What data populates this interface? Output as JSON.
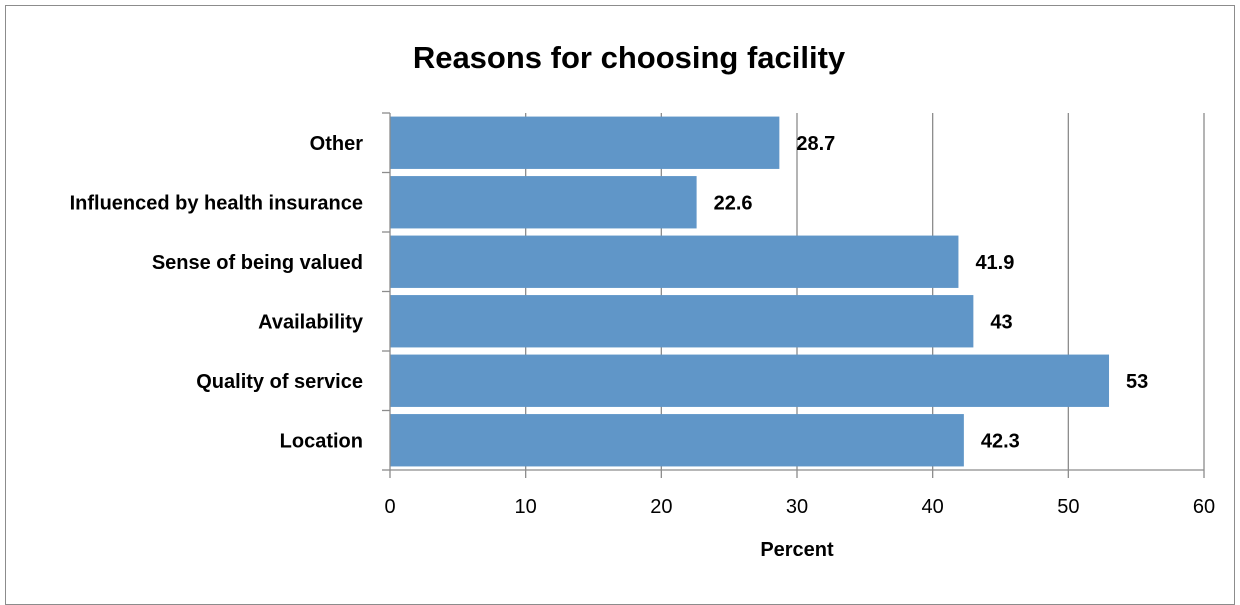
{
  "chart_data": {
    "type": "bar",
    "orientation": "horizontal",
    "title": "Reasons for choosing facility",
    "categories": [
      "Location",
      "Quality of service",
      "Availability ",
      "Sense of being valued",
      "Influenced by health insurance",
      "Other"
    ],
    "values": [
      42.3,
      53,
      43,
      41.9,
      22.6,
      28.7
    ],
    "value_labels": [
      "42.3",
      "53",
      "43",
      "41.9",
      "22.6",
      "28.7"
    ],
    "xlabel": "Percent",
    "ylabel": "",
    "xlim": [
      0,
      60
    ],
    "x_ticks": [
      0,
      10,
      20,
      30,
      40,
      50,
      60
    ],
    "grid": "vertical",
    "legend": "none",
    "bar_color": "#6096c8"
  }
}
